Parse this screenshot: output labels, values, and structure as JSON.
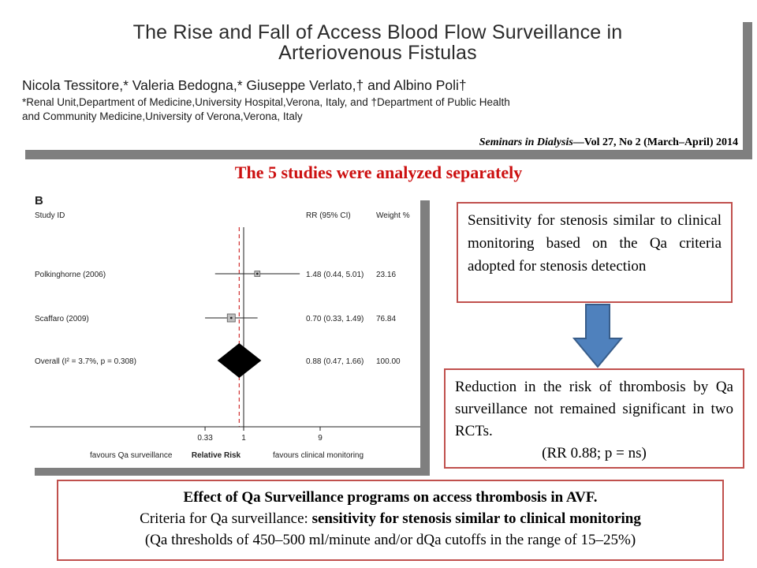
{
  "paper": {
    "title_line1": "The Rise and Fall of Access Blood Flow Surveillance in",
    "title_line2": "Arteriovenous Fistulas",
    "authors": "Nicola Tessitore,* Valeria Bedogna,* Giuseppe Verlato,† and Albino Poli†",
    "affiliation_line1": "*Renal Unit,Department of Medicine,University Hospital,Verona, Italy, and †Department of Public Health",
    "affiliation_line2": "and Community Medicine,University of Verona,Verona, Italy",
    "citation_journal": "Seminars in Dialysis",
    "citation_rest": "—Vol 27, No 2 (March–April) 2014"
  },
  "banner": "The 5 studies were analyzed separately",
  "forest_plot": {
    "panel_label": "B",
    "col_study": "Study ID",
    "col_rr": "RR (95% CI)",
    "col_weight": "Weight %",
    "axis_title": "Relative Risk",
    "favours_left": "favours Qa surveillance",
    "favours_right": "favours clinical monitoring"
  },
  "chart_data": {
    "type": "forest",
    "x_scale": "log",
    "x_ticks": [
      "0.33",
      "1",
      "9"
    ],
    "null_line": 1,
    "overall_line": 0.88,
    "studies": [
      {
        "label": "Polkinghorne (2006)",
        "rr": 1.48,
        "ci_low": 0.44,
        "ci_high": 5.01,
        "rr_text": "1.48 (0.44, 5.01)",
        "weight": "23.16"
      },
      {
        "label": "Scaffaro (2009)",
        "rr": 0.7,
        "ci_low": 0.33,
        "ci_high": 1.49,
        "rr_text": "0.70 (0.33, 1.49)",
        "weight": "76.84"
      }
    ],
    "overall": {
      "label": "Overall  (I² = 3.7%, p = 0.308)",
      "rr": 0.88,
      "ci_low": 0.47,
      "ci_high": 1.66,
      "rr_text": "0.88 (0.47, 1.66)",
      "weight": "100.00"
    }
  },
  "callouts": {
    "sensitivity": "Sensitivity for stenosis similar to clinical monitoring based on the Qa criteria adopted for stenosis detection",
    "reduction_main": "Reduction in the risk of thrombosis by Qa surveillance not remained significant in two RCTs.",
    "reduction_last": "(RR 0.88; p = ns)"
  },
  "effect_box": {
    "line1": "Effect of Qa Surveillance programs on access thrombosis in AVF.",
    "line2_prefix": "Criteria for Qa surveillance: ",
    "line2_bold": "sensitivity for stenosis similar to clinical monitoring",
    "line3": "(Qa thresholds of 450–500 ml/minute and/or dQa cutoffs in the range of 15–25%)"
  },
  "colors": {
    "banner_red": "#cc1010",
    "box_border": "#c0504d",
    "arrow_fill": "#4f81bd",
    "arrow_stroke": "#385d8a",
    "null_line_red": "#d03030"
  }
}
